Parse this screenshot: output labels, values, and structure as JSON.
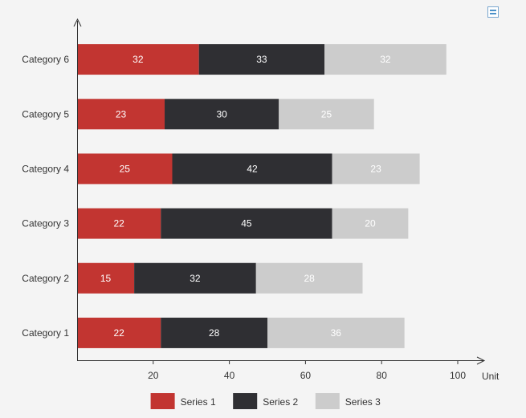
{
  "chart_data": {
    "type": "bar",
    "orientation": "horizontal",
    "stacked": true,
    "categories": [
      "Category 1",
      "Category 2",
      "Category 3",
      "Category 4",
      "Category 5",
      "Category 6"
    ],
    "series": [
      {
        "name": "Series 1",
        "color": "#c23531",
        "label_color": "#ffffff",
        "values": [
          22,
          15,
          22,
          25,
          23,
          32
        ]
      },
      {
        "name": "Series 2",
        "color": "#2f2f33",
        "label_color": "#ffffff",
        "values": [
          28,
          32,
          45,
          42,
          30,
          33
        ]
      },
      {
        "name": "Series 3",
        "color": "#cccccc",
        "label_color": "#ffffff",
        "values": [
          36,
          28,
          20,
          23,
          25,
          32
        ]
      }
    ],
    "xlim": [
      0,
      100
    ],
    "xticks": [
      20,
      40,
      60,
      80,
      100
    ],
    "xlabel": "Unit",
    "legend_position": "bottom",
    "grid": false
  },
  "toolbox": {
    "icon": "data-view-icon"
  }
}
